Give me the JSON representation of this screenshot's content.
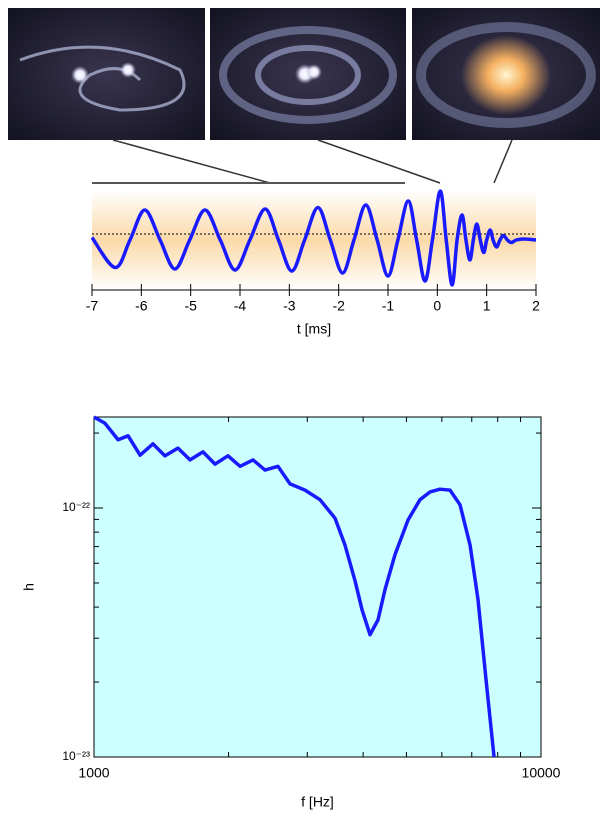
{
  "chart_data": [
    {
      "type": "line",
      "xlabel": "t [ms]",
      "xlim": [
        -7,
        2
      ],
      "ylim": [
        -1,
        1
      ],
      "xticks": [
        -7,
        -6,
        -5,
        -4,
        -3,
        -2,
        -1,
        0,
        1,
        2
      ],
      "series": [
        {
          "color": "#1a1aff",
          "x": [
            -7,
            -6.53,
            -6.23,
            -5.93,
            -5.62,
            -5.32,
            -5.02,
            -4.71,
            -4.4,
            -4.1,
            -3.8,
            -3.49,
            -3.22,
            -2.95,
            -2.69,
            -2.42,
            -2.17,
            -1.92,
            -1.69,
            -1.45,
            -1.22,
            -1.0,
            -0.8,
            -0.59,
            -0.42,
            -0.25,
            -0.1,
            0.06,
            0.18,
            0.3,
            0.4,
            0.5,
            0.58,
            0.66,
            0.73,
            0.8,
            0.87,
            0.94,
            1.0,
            1.07,
            1.13,
            1.2,
            1.27,
            1.34,
            1.42,
            1.5,
            1.6,
            1.75,
            2
          ],
          "values": [
            0.05,
            -0.55,
            0,
            0.6,
            0,
            -0.58,
            0,
            0.6,
            0,
            -0.6,
            0,
            0.62,
            0,
            -0.62,
            0,
            0.65,
            0,
            -0.66,
            0,
            0.7,
            0,
            -0.72,
            0,
            0.78,
            0,
            -0.82,
            0,
            0.98,
            0,
            -0.9,
            0,
            0.5,
            0,
            -0.4,
            0,
            0.32,
            0,
            -0.25,
            0,
            0.2,
            0,
            -0.14,
            0,
            0.09,
            0,
            -0.05,
            0,
            0.02,
            0
          ]
        }
      ]
    },
    {
      "type": "line",
      "xlabel": "f [Hz]",
      "ylabel": "h",
      "xscale": "log",
      "yscale": "log",
      "xlim": [
        1000,
        10000
      ],
      "ylim": [
        1e-23,
        2.32e-22
      ],
      "xticks": [
        1000,
        10000
      ],
      "yticks": [
        {
          "value": 1e-23,
          "label": "10⁻²³"
        },
        {
          "value": 1e-22,
          "label": "10⁻²²"
        }
      ],
      "xticks_minor": [
        2000,
        3000,
        4000,
        5000,
        6000,
        7000,
        8000,
        9000
      ],
      "yticks_minor": [
        2e-23,
        3e-23,
        4e-23,
        5e-23,
        6e-23,
        7e-23,
        8e-23,
        9e-23,
        2e-22
      ],
      "background": "#ccffff",
      "series": [
        {
          "color": "#1a1aff",
          "x": [
            1000,
            1058,
            1132,
            1192,
            1268,
            1355,
            1441,
            1541,
            1640,
            1753,
            1865,
            1994,
            2122,
            2269,
            2413,
            2580,
            2745,
            2965,
            3203,
            3461,
            3643,
            3837,
            3978,
            4145,
            4318,
            4477,
            4714,
            5041,
            5362,
            5644,
            5943,
            6258,
            6590,
            6939,
            7228,
            7535,
            7852
          ],
          "values": [
            2.32e-22,
            2.19e-22,
            1.88e-22,
            1.95e-22,
            1.63e-22,
            1.81e-22,
            1.62e-22,
            1.74e-22,
            1.56e-22,
            1.68e-22,
            1.5e-22,
            1.62e-22,
            1.47e-22,
            1.56e-22,
            1.42e-22,
            1.47e-22,
            1.25e-22,
            1.18e-22,
            1.08e-22,
            9.1e-23,
            7.1e-23,
            5.1e-23,
            3.9e-23,
            3.1e-23,
            3.55e-23,
            4.7e-23,
            6.5e-23,
            8.95e-23,
            1.08e-22,
            1.16e-22,
            1.19e-22,
            1.18e-22,
            1.03e-22,
            7.1e-23,
            4.3e-23,
            2.04e-23,
            1e-23
          ]
        }
      ]
    }
  ]
}
